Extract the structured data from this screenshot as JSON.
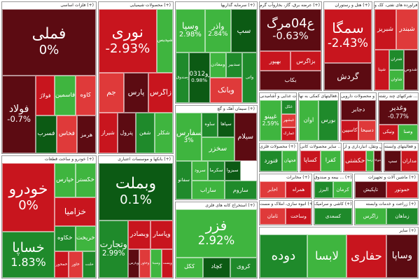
{
  "colors": {
    "dark_red": "#5c0b12",
    "red": "#c8151e",
    "light_red": "#df3a3a",
    "dark_green": "#0c5a14",
    "green": "#1f8a2b",
    "light_green": "#3fb53f",
    "divider": "#9a9a9a"
  },
  "chart_data": {
    "type": "treemap",
    "title": "",
    "sectors": [
      {
        "name": "فلزات اساسی",
        "header": "فلزات اساسی (+)",
        "tiles": [
          {
            "symbol": "فملی",
            "change": "0%",
            "color": "dark_red"
          },
          {
            "symbol": "فولاد",
            "change": "-0.7%",
            "color": "dark_red"
          },
          {
            "symbol": "فولاژ",
            "change": "",
            "color": "red"
          },
          {
            "symbol": "فاسمین",
            "change": "",
            "color": "light_green"
          },
          {
            "symbol": "کاوه",
            "change": "",
            "color": "light_red"
          },
          {
            "symbol": "فسرب",
            "change": "",
            "color": "dark_green"
          },
          {
            "symbol": "فخاس",
            "change": "",
            "color": "light_red"
          },
          {
            "symbol": "هرمز",
            "change": "",
            "color": "dark_red"
          }
        ]
      },
      {
        "name": "خودرو و ساخت قطعات",
        "header": "خودرو و ساخت قطعات (+)",
        "tiles": [
          {
            "symbol": "خودرو",
            "change": "0%",
            "color": "red"
          },
          {
            "symbol": "خساپا",
            "change": "1.83%",
            "color": "green"
          },
          {
            "symbol": "خپارس",
            "change": "",
            "color": "light_green"
          },
          {
            "symbol": "خگستر",
            "change": "",
            "color": "light_green"
          },
          {
            "symbol": "خزامیا",
            "change": "",
            "color": "red"
          },
          {
            "symbol": "خکاوه",
            "change": "",
            "color": "green"
          },
          {
            "symbol": "خریخت",
            "change": "",
            "color": "light_green"
          },
          {
            "symbol": "خمحور",
            "change": "",
            "color": "red"
          },
          {
            "symbol": "خاور",
            "change": "",
            "color": "light_red"
          },
          {
            "symbol": "خلنت",
            "change": "",
            "color": "green"
          }
        ]
      },
      {
        "name": "محصولات شیمیایی",
        "header": "محصولات شیمیایی (+)",
        "tiles": [
          {
            "symbol": "نوری",
            "change": "-2.93%",
            "color": "red"
          },
          {
            "symbol": "شپدیس",
            "change": "",
            "color": "light_green"
          },
          {
            "symbol": "جم",
            "change": "",
            "color": "light_red"
          },
          {
            "symbol": "پارس",
            "change": "",
            "color": "dark_red"
          },
          {
            "symbol": "زاگرس",
            "change": "",
            "color": "red"
          },
          {
            "symbol": "شیراز",
            "change": "",
            "color": "red"
          },
          {
            "symbol": "پترول",
            "change": "",
            "color": "dark_red"
          },
          {
            "symbol": "شفن",
            "change": "",
            "color": "green"
          },
          {
            "symbol": "شکلر",
            "change": "",
            "color": "light_green"
          }
        ]
      },
      {
        "name": "بانکها و موسسات اعتباری",
        "header": "بانکها و موسسات اعتباری (+)",
        "tiles": [
          {
            "symbol": "وبملت",
            "change": "0.1%",
            "color": "dark_green"
          },
          {
            "symbol": "وتجارت",
            "change": "2.99%",
            "color": "green"
          },
          {
            "symbol": "وبصادر",
            "change": "",
            "color": "red"
          },
          {
            "symbol": "وپاسار",
            "change": "",
            "color": "red"
          },
          {
            "symbol": "وپارس",
            "change": "",
            "color": "dark_red"
          },
          {
            "symbol": "وخاور",
            "change": "",
            "color": "light_red"
          },
          {
            "symbol": "وسینا",
            "change": "",
            "color": "light_green"
          },
          {
            "symbol": "وپست",
            "change": "",
            "color": "red"
          }
        ]
      },
      {
        "name": "سرمایه گذاریها",
        "header": "سرمایه گذاریها (+)",
        "tiles": [
          {
            "symbol": "وسپا",
            "change": "2.98%",
            "color": "light_green"
          },
          {
            "symbol": "وآذر",
            "change": "2.84%",
            "color": "light_green"
          },
          {
            "symbol": "سپ",
            "change": "",
            "color": "dark_green"
          },
          {
            "symbol": "وصندوق",
            "change": "",
            "color": "green"
          },
          {
            "symbol": "سرو0312",
            "change": "0.98%",
            "color": "dark_green"
          },
          {
            "symbol": "ومعادن",
            "change": "",
            "color": "light_green"
          },
          {
            "symbol": "سدبیر",
            "change": "",
            "color": "green"
          },
          {
            "symbol": "وبانک",
            "change": "",
            "color": "light_red"
          },
          {
            "symbol": "واتی",
            "change": "",
            "color": "green"
          }
        ]
      },
      {
        "name": "سیمان آهک و گچ",
        "header": "سیمان آهک و گچ (+)",
        "tiles": [
          {
            "symbol": "سفارس",
            "change": "3%",
            "color": "light_green"
          },
          {
            "symbol": "ساوه",
            "change": "",
            "color": "green"
          },
          {
            "symbol": "سپاها",
            "change": "",
            "color": "dark_green"
          },
          {
            "symbol": "سیلام",
            "change": "",
            "color": "dark_red"
          },
          {
            "symbol": "سخزر",
            "change": "",
            "color": "light_green"
          },
          {
            "symbol": "سفانو",
            "change": "",
            "color": "green"
          },
          {
            "symbol": "سرود",
            "change": "",
            "color": "light_green"
          },
          {
            "symbol": "سکرما",
            "change": "",
            "color": "green"
          },
          {
            "symbol": "سبزوا",
            "change": "",
            "color": "dark_green"
          },
          {
            "symbol": "ساراب",
            "change": "",
            "color": "light_green"
          },
          {
            "symbol": "ساروم",
            "change": "",
            "color": "green"
          }
        ]
      },
      {
        "name": "استخراج کانه های فلزی",
        "header": "استخراج کانه های فلزی (+)",
        "tiles": [
          {
            "symbol": "فزر",
            "change": "2.92%",
            "color": "light_green"
          },
          {
            "symbol": "کگل",
            "change": "",
            "color": "light_green"
          },
          {
            "symbol": "کچاد",
            "change": "",
            "color": "dark_green"
          },
          {
            "symbol": "کروی",
            "change": "",
            "color": "green"
          }
        ]
      },
      {
        "name": "عرضه برق، گاز، بخاروآب گرم",
        "header": "عرضه برق، گاز، بخاروآب گرم (+)",
        "tiles": [
          {
            "symbol": "ع04مرگ",
            "change": "-0.63%",
            "color": "dark_red"
          },
          {
            "symbol": "بهپور",
            "change": "",
            "color": "red"
          },
          {
            "symbol": "بزاگرس",
            "change": "",
            "color": "red"
          },
          {
            "symbol": "بکاب",
            "change": "",
            "color": "dark_red"
          }
        ]
      },
      {
        "name": "هتل و رستوران",
        "header": "هتل و رستوران (+)",
        "tiles": [
          {
            "symbol": "سمگا",
            "change": "-2.43%",
            "color": "red"
          },
          {
            "symbol": "گردش",
            "change": "",
            "color": "dark_red"
          }
        ]
      },
      {
        "name": "فراورده های نفتی، کک و سوخت",
        "header": "فراورده های نفتی، کک و ... (+)",
        "tiles": [
          {
            "symbol": "شبریز",
            "change": "",
            "color": "red"
          },
          {
            "symbol": "شبندر",
            "change": "",
            "color": "light_red"
          },
          {
            "symbol": "شپنا",
            "change": "",
            "color": "red"
          },
          {
            "symbol": "شتران",
            "change": "",
            "color": "green"
          },
          {
            "symbol": "شاوان",
            "change": "",
            "color": "light_green"
          },
          {
            "symbol": "شدوص",
            "change": "",
            "color": "dark_red"
          }
        ]
      },
      {
        "name": "محصولات غذایی و آشامیدنی",
        "header": "محصولات غذایی و آشامیدنی (+)",
        "tiles": [
          {
            "symbol": "غپینو",
            "change": "2.59%",
            "color": "light_green"
          },
          {
            "symbol": "غگل",
            "change": "",
            "color": "green"
          },
          {
            "symbol": "غبشهر",
            "change": "",
            "color": "light_red"
          },
          {
            "symbol": "غمارگ",
            "change": "",
            "color": "red"
          }
        ]
      },
      {
        "name": "فعالیتهای کمکی به نهادها",
        "header": "فعالیتهای کمکی به نها... (+)",
        "tiles": [
          {
            "symbol": "اوان",
            "change": "",
            "color": "light_green"
          },
          {
            "symbol": "بورس",
            "change": "",
            "color": "green"
          }
        ]
      },
      {
        "name": "مواد و محصولات دارویی",
        "header": "مواد و محصولات دارویی (+)",
        "tiles": [
          {
            "symbol": "دجابر",
            "change": "",
            "color": "dark_red"
          },
          {
            "symbol": "کاسپین",
            "change": "",
            "color": "red"
          },
          {
            "symbol": "دسبحا",
            "change": "",
            "color": "light_red"
          }
        ]
      },
      {
        "name": "شرکتهای چند رشته ای",
        "header": "شرکتهای چند رشته ... (+)",
        "tiles": [
          {
            "symbol": "وغدیر",
            "change": "-0.77%",
            "color": "dark_red"
          },
          {
            "symbol": "ونیکی",
            "change": "",
            "color": "red"
          },
          {
            "symbol": "وصنا",
            "change": "",
            "color": "light_green"
          }
        ]
      },
      {
        "name": "محصولات فلزی",
        "header": "محصولات فلزی (+)",
        "tiles": [
          {
            "symbol": "فنورد",
            "change": "",
            "color": "green"
          },
          {
            "symbol": "فجهان",
            "change": "",
            "color": "light_green"
          }
        ]
      },
      {
        "name": "سایر محصولات کانی غیرفلزی",
        "header": "سایر محصولات کانی ... (+)",
        "tiles": [
          {
            "symbol": "کساپا",
            "change": "",
            "color": "red"
          },
          {
            "symbol": "کفرا",
            "change": "",
            "color": "light_green"
          }
        ]
      },
      {
        "name": "حمل و نقل، انبارداری و ارتباطات",
        "header": "حمل ونقل، انبارداری و ار (+)",
        "tiles": [
          {
            "symbol": "حکشتی",
            "change": "",
            "color": "red"
          },
          {
            "symbol": "حپارسا",
            "change": "",
            "color": "light_green"
          },
          {
            "symbol": "حتوکا",
            "change": "",
            "color": "dark_red"
          }
        ]
      },
      {
        "name": "رایانه و فعالیتهای وابسته",
        "header": "رایانه و فعالیتهای وابسته (+)",
        "tiles": [
          {
            "symbol": "سپ",
            "change": "",
            "color": "dark_red"
          },
          {
            "symbol": "مداران",
            "change": "",
            "color": "red"
          }
        ]
      },
      {
        "name": "مخابرات",
        "header": "مخابرات (+)",
        "tiles": [
          {
            "symbol": "اخابر",
            "change": "",
            "color": "light_red"
          },
          {
            "symbol": "همراه",
            "change": "",
            "color": "red"
          }
        ]
      },
      {
        "name": "بیمه و صندوق بازنشستگی",
        "header": "بیمه و صندوق ... (+)",
        "tiles": [
          {
            "symbol": "البرز",
            "change": "",
            "color": "green"
          },
          {
            "symbol": "کرمان",
            "change": "",
            "color": "light_green"
          }
        ]
      },
      {
        "name": "ماشین آلات و تجهیزات",
        "header": "ماشین آلات و تجهیزات (+)",
        "tiles": [
          {
            "symbol": "تاپکیش",
            "change": "",
            "color": "dark_red"
          },
          {
            "symbol": "خموتور",
            "change": "",
            "color": "red"
          }
        ]
      },
      {
        "name": "انبوه سازی، املاک و مستغلات",
        "header": "انبوه سازی، املاک و مست (+)",
        "tiles": [
          {
            "symbol": "ثامان",
            "change": "",
            "color": "light_red"
          },
          {
            "symbol": "وساخت",
            "change": "",
            "color": "red"
          }
        ]
      },
      {
        "name": "کاشی و سرامیک",
        "header": "کاشی و سرامیک (+)",
        "tiles": [
          {
            "symbol": "کسعدی",
            "change": "",
            "color": "green"
          }
        ]
      },
      {
        "name": "زراعت و خدمات وابسته",
        "header": "زراعت و خدمات وابسته (+)",
        "tiles": [
          {
            "symbol": "زاگرس",
            "change": "",
            "color": "light_green"
          },
          {
            "symbol": "زماهان",
            "change": "",
            "color": "green"
          }
        ]
      },
      {
        "name": "سایر",
        "header": "سایر (+)",
        "tiles": [
          {
            "symbol": "دوده",
            "change": "",
            "color": "green"
          },
          {
            "symbol": "لابسا",
            "change": "",
            "color": "light_green"
          },
          {
            "symbol": "حفاری",
            "change": "",
            "color": "red"
          },
          {
            "symbol": "وساپا",
            "change": "",
            "color": "dark_red"
          }
        ]
      }
    ]
  }
}
